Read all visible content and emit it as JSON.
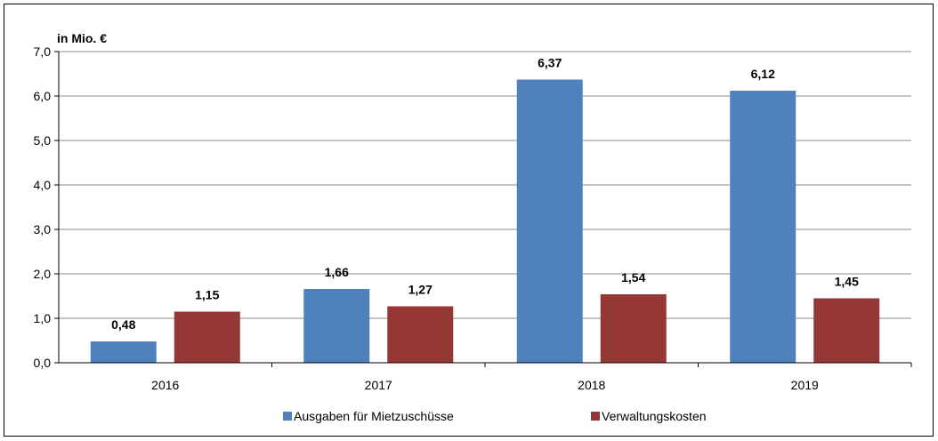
{
  "chart_data": {
    "type": "bar",
    "unit_label": "in Mio. €",
    "categories": [
      "2016",
      "2017",
      "2018",
      "2019"
    ],
    "ylim": [
      0,
      7
    ],
    "yticks": [
      "0,0",
      "1,0",
      "2,0",
      "3,0",
      "4,0",
      "5,0",
      "6,0",
      "7,0"
    ],
    "ytick_values": [
      0,
      1,
      2,
      3,
      4,
      5,
      6,
      7
    ],
    "grid": true,
    "legend_position": "bottom",
    "series": [
      {
        "name": "Ausgaben für Mietzuschüsse",
        "color": "#4F81BD",
        "values": [
          0.48,
          1.66,
          6.37,
          6.12
        ],
        "labels": [
          "0,48",
          "1,66",
          "6,37",
          "6,12"
        ]
      },
      {
        "name": "Verwaltungskosten",
        "color": "#953735",
        "values": [
          1.15,
          1.27,
          1.54,
          1.45
        ],
        "labels": [
          "1,15",
          "1,27",
          "1,54",
          "1,45"
        ]
      }
    ]
  }
}
